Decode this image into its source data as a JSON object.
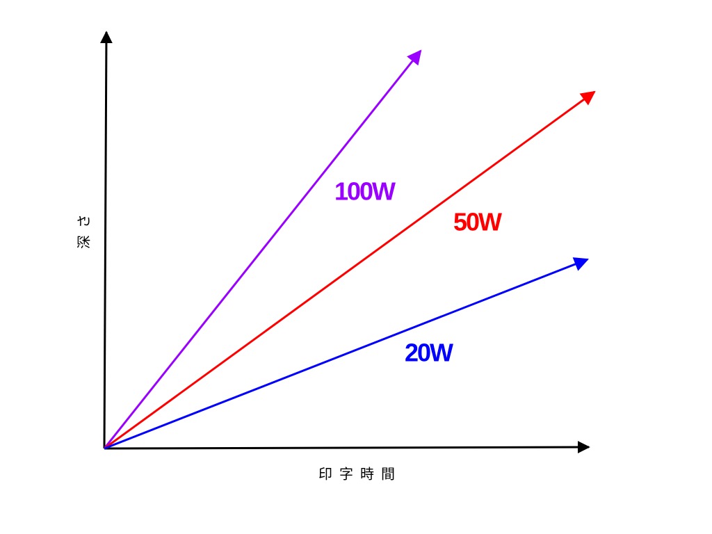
{
  "x_axis": {
    "label": "印字時間"
  },
  "y_axis": {
    "label": "深さ"
  },
  "lines": [
    {
      "label": "100W"
    },
    {
      "label": "50W"
    },
    {
      "label": "20W"
    }
  ]
}
